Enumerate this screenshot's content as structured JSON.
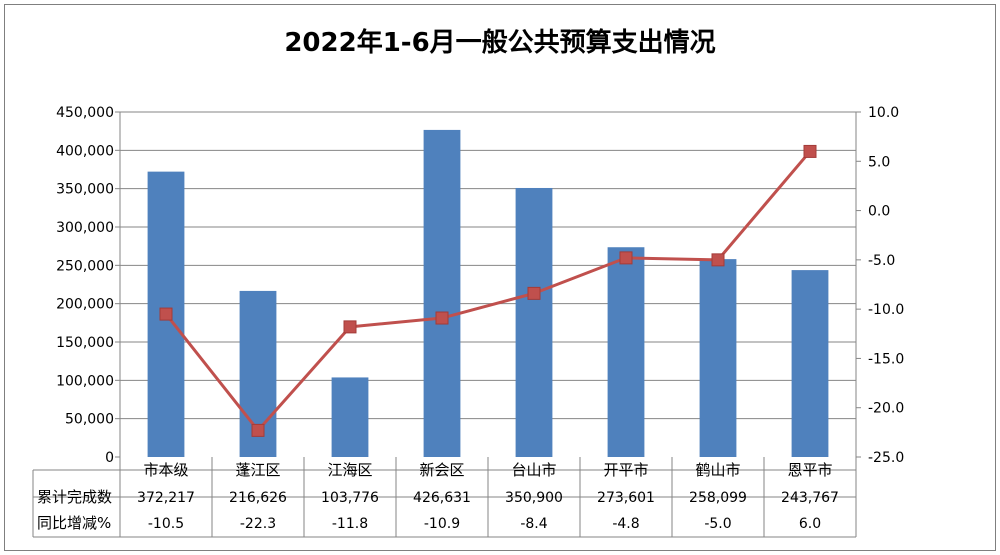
{
  "chart_data": {
    "title": "2022年1-6月一般公共预算支出情况",
    "type": "bar",
    "categories": [
      "市本级",
      "蓬江区",
      "江海区",
      "新会区",
      "台山市",
      "开平市",
      "鹤山市",
      "恩平市"
    ],
    "series": [
      {
        "name": "累计完成数",
        "type": "bar",
        "axis": "left",
        "color": "#4f81bd",
        "values": [
          372217,
          216626,
          103776,
          426631,
          350900,
          273601,
          258099,
          243767
        ],
        "labels": [
          "372,217",
          "216,626",
          "103,776",
          "426,631",
          "350,900",
          "273,601",
          "258,099",
          "243,767"
        ]
      },
      {
        "name": "同比增减%",
        "type": "line",
        "axis": "right",
        "color": "#c0504d",
        "values": [
          -10.5,
          -22.3,
          -11.8,
          -10.9,
          -8.4,
          -4.8,
          -5.0,
          6.0
        ],
        "labels": [
          "-10.5",
          "-22.3",
          "-11.8",
          "-10.9",
          "-8.4",
          "-4.8",
          "-5.0",
          "6.0"
        ]
      }
    ],
    "y_left": {
      "ylim": [
        0,
        450000
      ],
      "ticks": [
        "0",
        "50,000",
        "100,000",
        "150,000",
        "200,000",
        "250,000",
        "300,000",
        "350,000",
        "400,000",
        "450,000"
      ]
    },
    "y_right": {
      "ylim": [
        -25,
        10
      ],
      "ticks": [
        "-25.0",
        "-20.0",
        "-15.0",
        "-10.0",
        "-5.0",
        "0.0",
        "5.0",
        "10.0"
      ]
    },
    "grid": true,
    "legend": "data table below chart"
  }
}
